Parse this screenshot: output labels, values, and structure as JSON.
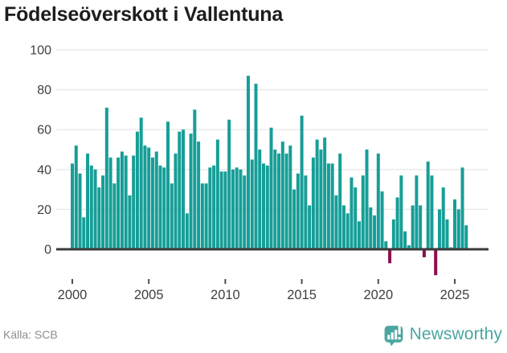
{
  "header": {
    "title": "Födelseöverskott i Vallentuna"
  },
  "footer": {
    "source": "Källa: SCB",
    "brand": "Newsworthy",
    "brand_color": "#4ba6a1"
  },
  "chart_data": {
    "type": "bar",
    "title": "Födelseöverskott i Vallentuna",
    "xlabel": "",
    "ylabel": "",
    "period": "quarterly",
    "start_year": 2000,
    "end_label": "2025 Q4",
    "x_tick_years": [
      2000,
      2005,
      2010,
      2015,
      2020,
      2025
    ],
    "yticks": [
      0,
      20,
      40,
      60,
      80,
      100
    ],
    "ylim": [
      -15,
      100
    ],
    "grid": "horizontal",
    "legend": "none",
    "colors": {
      "positive": "#169e97",
      "negative": "#8a104d",
      "zero_line": "#3a3a3a",
      "gridline": "#e8e8e8",
      "axis_text": "#3f3f3f"
    },
    "values": [
      43,
      52,
      38,
      16,
      48,
      42,
      40,
      31,
      37,
      71,
      46,
      33,
      46,
      49,
      47,
      27,
      47,
      59,
      66,
      52,
      51,
      46,
      49,
      42,
      41,
      64,
      33,
      48,
      59,
      60,
      18,
      58,
      70,
      54,
      33,
      33,
      41,
      42,
      55,
      39,
      39,
      65,
      40,
      41,
      40,
      37,
      87,
      45,
      83,
      50,
      43,
      42,
      61,
      50,
      48,
      54,
      48,
      52,
      30,
      38,
      67,
      37,
      22,
      46,
      55,
      50,
      56,
      43,
      43,
      27,
      48,
      22,
      18,
      36,
      31,
      14,
      37,
      50,
      21,
      17,
      48,
      29,
      4,
      -7,
      15,
      26,
      37,
      9,
      2,
      22,
      37,
      22,
      -4,
      44,
      37,
      -13,
      20,
      31,
      15,
      1,
      25,
      20,
      41,
      12
    ]
  }
}
